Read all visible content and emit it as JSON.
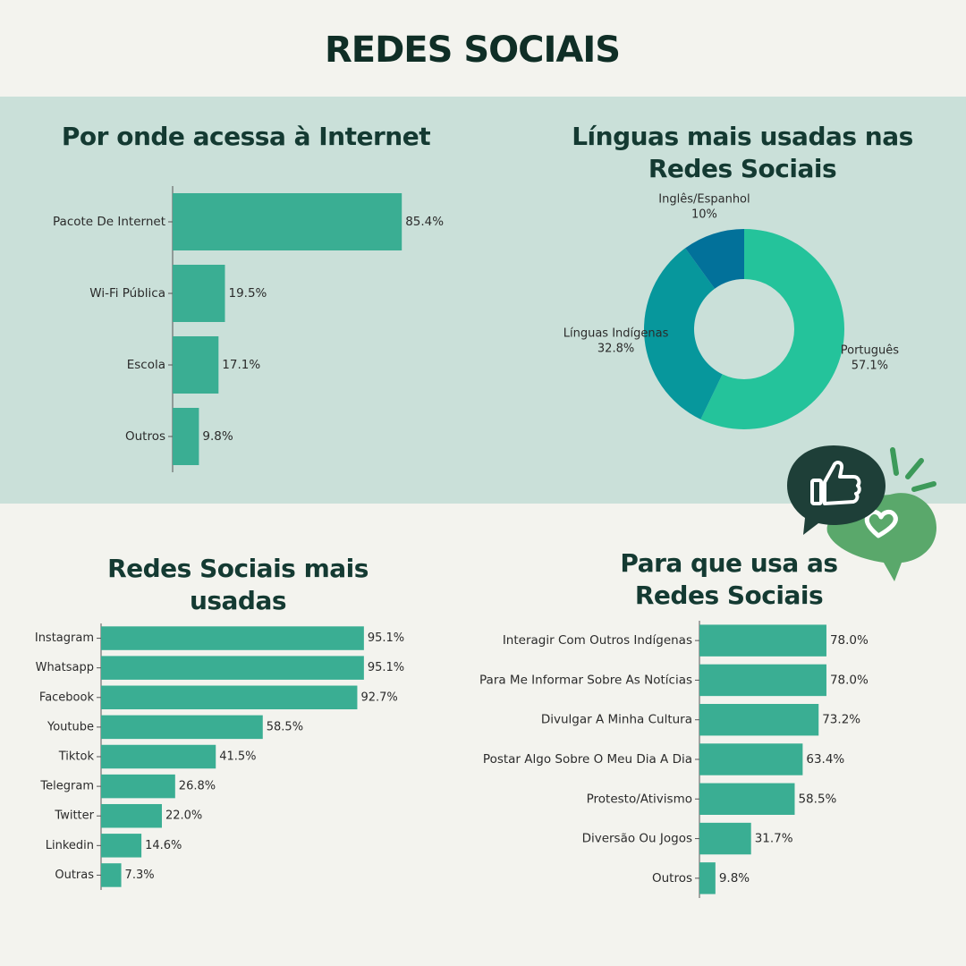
{
  "page": {
    "title": "REDES SOCIAIS"
  },
  "colors": {
    "background": "#f3f3ee",
    "band": "#cae0d9",
    "bar": "#3aae93",
    "heading": "#143a32",
    "bubble_dark": "#1e3f38",
    "bubble_green": "#5aa86b"
  },
  "icons": [
    "thumbs-up-icon",
    "heart-icon",
    "speech-bubble-icon",
    "spark-icon"
  ],
  "chart_data": [
    {
      "type": "bar",
      "orientation": "horizontal",
      "title": "Por onde acessa à Internet",
      "categories": [
        "Pacote De Internet",
        "Wi-Fi Pública",
        "Escola",
        "Outros"
      ],
      "values": [
        85.4,
        19.5,
        17.1,
        9.8
      ],
      "labels": [
        "85.4%",
        "19.5%",
        "17.1%",
        "9.8%"
      ],
      "xlim": [
        0,
        100
      ]
    },
    {
      "type": "pie",
      "donut": true,
      "title": "Línguas mais usadas nas Redes Sociais",
      "categories": [
        "Português",
        "Línguas Indígenas",
        "Inglês/Espanhol"
      ],
      "values": [
        57.1,
        32.8,
        10
      ],
      "labels": [
        "57.1%",
        "32.8%",
        "10%"
      ],
      "colors": [
        "#24c39b",
        "#07979c",
        "#02719a"
      ]
    },
    {
      "type": "bar",
      "orientation": "horizontal",
      "title": "Redes Sociais mais usadas",
      "categories": [
        "Instagram",
        "Whatsapp",
        "Facebook",
        "Youtube",
        "Tiktok",
        "Telegram",
        "Twitter",
        "Linkedin",
        "Outras"
      ],
      "values": [
        95.1,
        95.1,
        92.7,
        58.5,
        41.5,
        26.8,
        22.0,
        14.6,
        7.3
      ],
      "labels": [
        "95.1%",
        "95.1%",
        "92.7%",
        "58.5%",
        "41.5%",
        "26.8%",
        "22.0%",
        "14.6%",
        "7.3%"
      ],
      "xlim": [
        0,
        100
      ]
    },
    {
      "type": "bar",
      "orientation": "horizontal",
      "title": "Para que usa as Redes Sociais",
      "categories": [
        "Interagir Com Outros Indígenas",
        "Para Me Informar Sobre As Notícias",
        "Divulgar A Minha Cultura",
        "Postar Algo Sobre O Meu Dia A Dia",
        "Protesto/Ativismo",
        "Diversão Ou Jogos",
        "Outros"
      ],
      "values": [
        78.0,
        78.0,
        73.2,
        63.4,
        58.5,
        31.7,
        9.8
      ],
      "labels": [
        "78.0%",
        "78.0%",
        "73.2%",
        "63.4%",
        "58.5%",
        "31.7%",
        "9.8%"
      ],
      "xlim": [
        0,
        100
      ]
    }
  ]
}
